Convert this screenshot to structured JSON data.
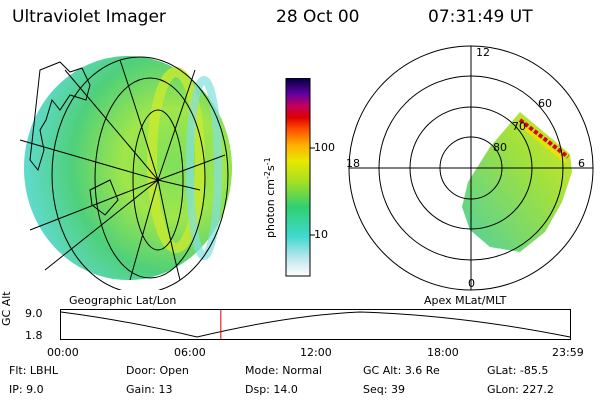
{
  "header": {
    "title": "Ultraviolet Imager",
    "date": "28 Oct 00",
    "time": "07:31:49 UT"
  },
  "panels": {
    "geo_label": "Geographic Lat/Lon",
    "apex_label": "Apex MLat/MLT"
  },
  "colorbar": {
    "label_text": "photon cm",
    "label_sup1": "-2",
    "label_mid": "s",
    "label_sup2": "-1",
    "ticks": [
      "100",
      "10"
    ]
  },
  "polar": {
    "mlt_labels": [
      "12",
      "18",
      "6",
      "0"
    ],
    "lat_labels": [
      "60",
      "70",
      "80"
    ]
  },
  "altitude_plot": {
    "ylabel": "GC Alt",
    "ymax": "9.0",
    "ymin": "1.8",
    "xticks": [
      "00:00",
      "06:00",
      "12:00",
      "18:00",
      "23:59"
    ],
    "current_time_fraction": 0.314
  },
  "info": {
    "row1": [
      {
        "key": "Flt:",
        "value": "LBHL"
      },
      {
        "key": "Door:",
        "value": "Open"
      },
      {
        "key": "Mode:",
        "value": "Normal"
      },
      {
        "key": "GC Alt:",
        "value": "3.6 Re"
      },
      {
        "key": "GLat:",
        "value": "-85.5"
      }
    ],
    "row2": [
      {
        "key": "IP:",
        "value": "9.0"
      },
      {
        "key": "Gain:",
        "value": "13"
      },
      {
        "key": "Dsp:",
        "value": "14.0"
      },
      {
        "key": "Seq:",
        "value": "39"
      },
      {
        "key": "GLon:",
        "value": "227.2"
      }
    ]
  }
}
